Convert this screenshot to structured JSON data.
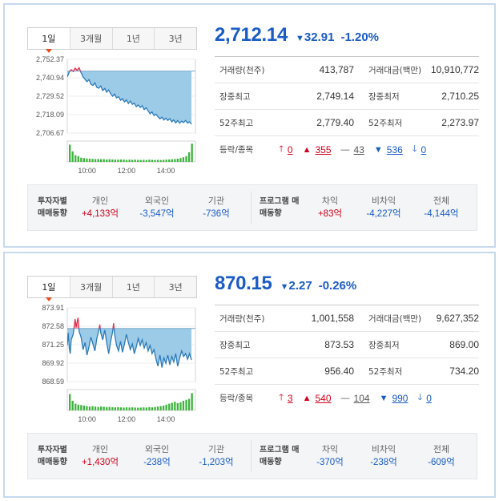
{
  "panels": [
    {
      "tabs": [
        "1일",
        "3개월",
        "1년",
        "3년"
      ],
      "price": "2,712.14",
      "change": "32.91",
      "change_pct": "-1.20%",
      "stats": {
        "volume_label": "거래량(천주)",
        "volume": "413,787",
        "amount_label": "거래대금(백만)",
        "amount": "10,910,772",
        "high_label": "장중최고",
        "high": "2,749.14",
        "low_label": "장중최저",
        "low": "2,710.25",
        "w52_high_label": "52주최고",
        "w52_high": "2,779.40",
        "w52_low_label": "52주최저",
        "w52_low": "2,273.97",
        "updown_label": "등락/종목"
      },
      "updown": {
        "limit_up": "0",
        "up": "355",
        "flat": "43",
        "down": "536",
        "limit_down": "0"
      },
      "investors": {
        "head": "투자자별 매매동향",
        "items": [
          {
            "label": "개인",
            "value": "+4,133억",
            "sign": "pos"
          },
          {
            "label": "외국인",
            "value": "-3,547억",
            "sign": "neg"
          },
          {
            "label": "기관",
            "value": "-736억",
            "sign": "neg"
          }
        ]
      },
      "program": {
        "head": "프로그램 매매동향",
        "items": [
          {
            "label": "차익",
            "value": "+83억",
            "sign": "pos"
          },
          {
            "label": "비차익",
            "value": "-4,227억",
            "sign": "neg"
          },
          {
            "label": "전체",
            "value": "-4,144억",
            "sign": "neg"
          }
        ]
      },
      "chart_data": {
        "type": "area",
        "yticks": [
          "2,752.37",
          "2,740.94",
          "2,729.52",
          "2,718.09",
          "2,706.67"
        ],
        "ylim": [
          2706.67,
          2752.37
        ],
        "reference": 2745.05,
        "xticks": [
          "10:00",
          "12:00",
          "14:00"
        ],
        "xlim": [
          9,
          15.5
        ],
        "line": [
          [
            9.0,
            2741.5
          ],
          [
            9.1,
            2744.5
          ],
          [
            9.2,
            2746.0
          ],
          [
            9.3,
            2744.8
          ],
          [
            9.4,
            2746.9
          ],
          [
            9.5,
            2745.6
          ],
          [
            9.6,
            2747.2
          ],
          [
            9.7,
            2744.0
          ],
          [
            9.8,
            2741.5
          ],
          [
            9.9,
            2740.0
          ],
          [
            10.0,
            2738.5
          ],
          [
            10.1,
            2739.8
          ],
          [
            10.2,
            2737.0
          ],
          [
            10.3,
            2736.2
          ],
          [
            10.4,
            2737.8
          ],
          [
            10.5,
            2735.0
          ],
          [
            10.6,
            2734.5
          ],
          [
            10.7,
            2735.9
          ],
          [
            10.8,
            2733.0
          ],
          [
            10.9,
            2734.3
          ],
          [
            11.0,
            2732.0
          ],
          [
            11.1,
            2733.4
          ],
          [
            11.2,
            2731.0
          ],
          [
            11.3,
            2729.5
          ],
          [
            11.4,
            2730.8
          ],
          [
            11.5,
            2728.5
          ],
          [
            11.6,
            2729.2
          ],
          [
            11.7,
            2727.0
          ],
          [
            11.8,
            2728.0
          ],
          [
            11.9,
            2726.0
          ],
          [
            12.0,
            2727.2
          ],
          [
            12.1,
            2725.0
          ],
          [
            12.2,
            2726.5
          ],
          [
            12.3,
            2724.5
          ],
          [
            12.4,
            2725.2
          ],
          [
            12.5,
            2723.0
          ],
          [
            12.6,
            2724.1
          ],
          [
            12.7,
            2722.5
          ],
          [
            12.8,
            2723.6
          ],
          [
            12.9,
            2721.2
          ],
          [
            13.0,
            2722.3
          ],
          [
            13.1,
            2720.5
          ],
          [
            13.2,
            2718.6
          ],
          [
            13.3,
            2719.8
          ],
          [
            13.4,
            2717.5
          ],
          [
            13.5,
            2718.4
          ],
          [
            13.6,
            2716.8
          ],
          [
            13.7,
            2715.5
          ],
          [
            13.8,
            2716.5
          ],
          [
            13.9,
            2714.8
          ],
          [
            14.0,
            2715.9
          ],
          [
            14.1,
            2714.5
          ],
          [
            14.2,
            2715.6
          ],
          [
            14.3,
            2713.6
          ],
          [
            14.4,
            2714.8
          ],
          [
            14.5,
            2713.0
          ],
          [
            14.6,
            2714.4
          ],
          [
            14.7,
            2712.8
          ],
          [
            14.8,
            2714.0
          ],
          [
            14.9,
            2713.2
          ],
          [
            15.0,
            2714.5
          ],
          [
            15.1,
            2712.9
          ],
          [
            15.2,
            2713.6
          ],
          [
            15.3,
            2712.14
          ]
        ],
        "volume": [
          0.9,
          0.55,
          0.35,
          0.3,
          0.22,
          0.2,
          0.18,
          0.17,
          0.16,
          0.15,
          0.15,
          0.14,
          0.14,
          0.13,
          0.14,
          0.13,
          0.12,
          0.12,
          0.13,
          0.12,
          0.11,
          0.12,
          0.11,
          0.12,
          0.11,
          0.1,
          0.11,
          0.1,
          0.12,
          0.11,
          0.1,
          0.11,
          0.1,
          0.11,
          0.12,
          0.13,
          0.14,
          0.15,
          0.17,
          0.2,
          0.24,
          0.3,
          0.5,
          0.95
        ]
      }
    },
    {
      "tabs": [
        "1일",
        "3개월",
        "1년",
        "3년"
      ],
      "price": "870.15",
      "change": "2.27",
      "change_pct": "-0.26%",
      "stats": {
        "volume_label": "거래량(천주)",
        "volume": "1,001,558",
        "amount_label": "거래대금(백만)",
        "amount": "9,627,352",
        "high_label": "장중최고",
        "high": "873.53",
        "low_label": "장중최저",
        "low": "869.00",
        "w52_high_label": "52주최고",
        "w52_high": "956.40",
        "w52_low_label": "52주최저",
        "w52_low": "734.20",
        "updown_label": "등락/종목"
      },
      "updown": {
        "limit_up": "3",
        "up": "540",
        "flat": "104",
        "down": "990",
        "limit_down": "0"
      },
      "investors": {
        "head": "투자자별 매매동향",
        "items": [
          {
            "label": "개인",
            "value": "+1,430억",
            "sign": "pos"
          },
          {
            "label": "외국인",
            "value": "-238억",
            "sign": "neg"
          },
          {
            "label": "기관",
            "value": "-1,203억",
            "sign": "neg"
          }
        ]
      },
      "program": {
        "head": "프로그램 매매동향",
        "items": [
          {
            "label": "차익",
            "value": "-370억",
            "sign": "neg"
          },
          {
            "label": "비차익",
            "value": "-238억",
            "sign": "neg"
          },
          {
            "label": "전체",
            "value": "-609억",
            "sign": "neg"
          }
        ]
      },
      "chart_data": {
        "type": "area",
        "yticks": [
          "873.91",
          "872.58",
          "871.25",
          "869.92",
          "868.59"
        ],
        "ylim": [
          868.59,
          873.91
        ],
        "reference": 872.42,
        "xticks": [
          "10:00",
          "12:00",
          "14:00"
        ],
        "xlim": [
          9,
          15.5
        ],
        "line": [
          [
            9.0,
            871.2
          ],
          [
            9.05,
            872.1
          ],
          [
            9.1,
            871.0
          ],
          [
            9.15,
            870.6
          ],
          [
            9.2,
            871.6
          ],
          [
            9.3,
            872.0
          ],
          [
            9.4,
            873.1
          ],
          [
            9.45,
            872.5
          ],
          [
            9.5,
            872.9
          ],
          [
            9.55,
            873.2
          ],
          [
            9.6,
            872.2
          ],
          [
            9.7,
            871.8
          ],
          [
            9.8,
            870.9
          ],
          [
            9.9,
            871.4
          ],
          [
            10.0,
            870.5
          ],
          [
            10.1,
            871.1
          ],
          [
            10.2,
            871.8
          ],
          [
            10.3,
            871.3
          ],
          [
            10.4,
            870.8
          ],
          [
            10.5,
            871.7
          ],
          [
            10.6,
            872.3
          ],
          [
            10.65,
            872.7
          ],
          [
            10.7,
            872.1
          ],
          [
            10.8,
            871.6
          ],
          [
            10.9,
            872.3
          ],
          [
            11.0,
            871.4
          ],
          [
            11.1,
            870.6
          ],
          [
            11.2,
            871.5
          ],
          [
            11.3,
            872.2
          ],
          [
            11.35,
            872.8
          ],
          [
            11.4,
            872.0
          ],
          [
            11.5,
            871.2
          ],
          [
            11.6,
            870.8
          ],
          [
            11.7,
            871.5
          ],
          [
            11.8,
            870.7
          ],
          [
            11.9,
            871.3
          ],
          [
            12.0,
            872.0
          ],
          [
            12.1,
            871.4
          ],
          [
            12.2,
            870.9
          ],
          [
            12.3,
            871.3
          ],
          [
            12.4,
            870.6
          ],
          [
            12.5,
            871.1
          ],
          [
            12.6,
            871.7
          ],
          [
            12.7,
            871.2
          ],
          [
            12.8,
            871.6
          ],
          [
            12.9,
            871.0
          ],
          [
            13.0,
            871.4
          ],
          [
            13.1,
            870.8
          ],
          [
            13.2,
            871.2
          ],
          [
            13.3,
            870.6
          ],
          [
            13.4,
            870.9
          ],
          [
            13.5,
            870.2
          ],
          [
            13.6,
            869.7
          ],
          [
            13.7,
            870.5
          ],
          [
            13.8,
            869.6
          ],
          [
            13.9,
            870.3
          ],
          [
            14.0,
            869.9
          ],
          [
            14.1,
            870.5
          ],
          [
            14.2,
            869.8
          ],
          [
            14.3,
            870.4
          ],
          [
            14.4,
            870.0
          ],
          [
            14.5,
            870.6
          ],
          [
            14.6,
            869.7
          ],
          [
            14.7,
            870.3
          ],
          [
            14.8,
            870.8
          ],
          [
            14.9,
            870.4
          ],
          [
            15.0,
            870.6
          ],
          [
            15.1,
            870.2
          ],
          [
            15.2,
            870.6
          ],
          [
            15.3,
            870.15
          ]
        ],
        "volume": [
          0.85,
          0.5,
          0.35,
          0.3,
          0.28,
          0.25,
          0.22,
          0.2,
          0.22,
          0.2,
          0.18,
          0.2,
          0.19,
          0.17,
          0.18,
          0.17,
          0.16,
          0.17,
          0.16,
          0.15,
          0.16,
          0.15,
          0.16,
          0.15,
          0.14,
          0.15,
          0.16,
          0.15,
          0.17,
          0.16,
          0.18,
          0.2,
          0.22,
          0.25,
          0.3,
          0.35,
          0.4,
          0.45,
          0.38,
          0.42,
          0.5,
          0.55,
          0.6,
          0.9
        ]
      }
    }
  ]
}
